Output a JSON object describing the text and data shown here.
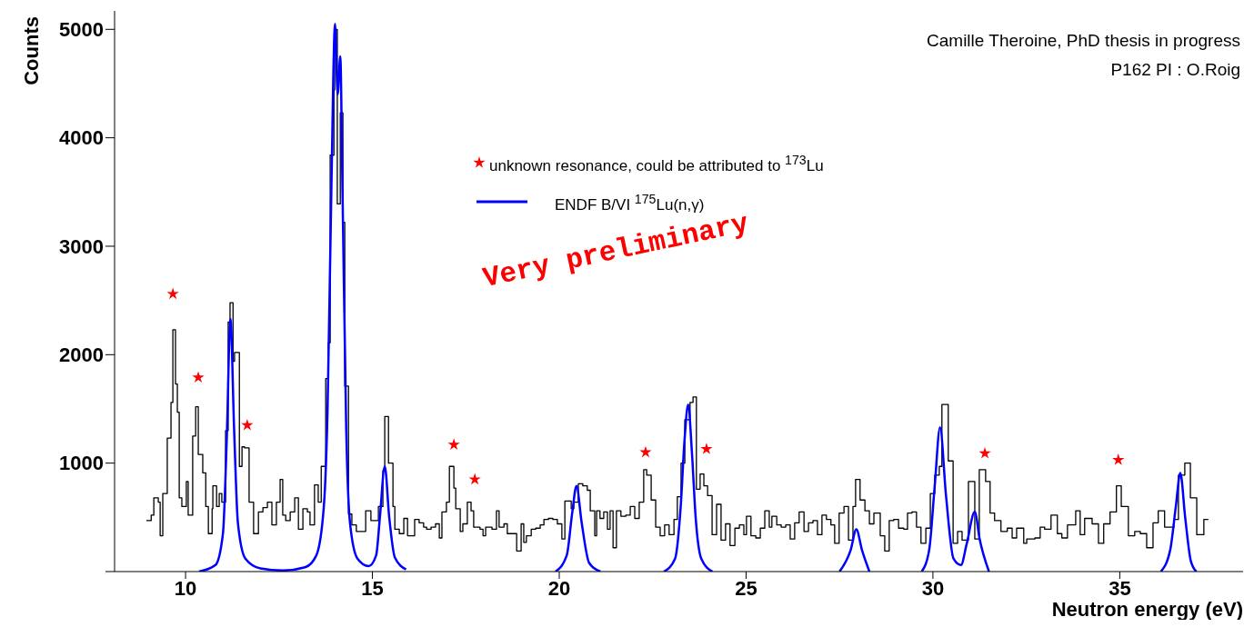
{
  "chart_data": {
    "type": "step",
    "xlabel": "Neutron energy (eV)",
    "ylabel": "Counts",
    "xlim": [
      8.1,
      38.3
    ],
    "xticks": [
      10,
      15,
      20,
      25,
      30,
      35
    ],
    "ylim": [
      0,
      5170
    ],
    "yticks": [
      {
        "value": 0,
        "label": null
      },
      1000,
      2000,
      3000,
      4000,
      5000
    ],
    "grid": false,
    "legend": "top",
    "annotations": [
      "Camille Theroine, PhD thesis in progress",
      "P162 PI : O.Roig",
      "Very preliminary"
    ],
    "series": [
      {
        "color": "#000000",
        "x": [
          8.95,
          9.08,
          9.15,
          9.27,
          9.32,
          9.39,
          9.51,
          9.61,
          9.66,
          9.73,
          9.78,
          9.83,
          9.9,
          10.02,
          10.07,
          10.19,
          10.27,
          10.34,
          10.46,
          10.54,
          10.61,
          10.71,
          10.73,
          10.83,
          10.9,
          10.97,
          11.07,
          11.14,
          11.19,
          11.27,
          11.31,
          11.44,
          11.51,
          11.58,
          11.7,
          11.82,
          11.95,
          12.07,
          12.19,
          12.31,
          12.43,
          12.53,
          12.6,
          12.68,
          12.8,
          12.92,
          13.02,
          13.14,
          13.26,
          13.33,
          13.45,
          13.55,
          13.63,
          13.75,
          13.82,
          13.87,
          13.97,
          13.99,
          14.06,
          14.14,
          14.21,
          14.26,
          14.36,
          14.45,
          14.57,
          14.82,
          14.96,
          15.16,
          15.28,
          15.33,
          15.43,
          15.55,
          15.6,
          15.72,
          15.84,
          15.94,
          16.13,
          16.25,
          16.37,
          16.45,
          16.57,
          16.69,
          16.79,
          16.86,
          16.98,
          17.06,
          17.18,
          17.23,
          17.35,
          17.42,
          17.54,
          17.64,
          17.71,
          17.88,
          17.96,
          18.03,
          18.2,
          18.32,
          18.39,
          18.52,
          18.61,
          18.86,
          18.98,
          19.05,
          19.12,
          19.25,
          19.37,
          19.49,
          19.59,
          19.71,
          19.83,
          19.95,
          20.07,
          20.15,
          20.32,
          20.39,
          20.51,
          20.63,
          20.75,
          20.83,
          20.95,
          21.0,
          21.09,
          21.19,
          21.29,
          21.36,
          21.44,
          21.53,
          21.65,
          21.78,
          21.9,
          22.02,
          22.14,
          22.26,
          22.34,
          22.46,
          22.58,
          22.7,
          22.82,
          22.94,
          23.07,
          23.16,
          23.26,
          23.36,
          23.5,
          23.58,
          23.67,
          23.77,
          23.87,
          23.97,
          24.09,
          24.21,
          24.33,
          24.45,
          24.57,
          24.7,
          24.82,
          24.94,
          25.01,
          25.13,
          25.26,
          25.38,
          25.5,
          25.62,
          25.69,
          25.82,
          25.94,
          26.06,
          26.18,
          26.3,
          26.42,
          26.55,
          26.67,
          26.79,
          26.91,
          27.03,
          27.15,
          27.27,
          27.37,
          27.49,
          27.62,
          27.74,
          27.86,
          27.93,
          28.05,
          28.18,
          28.3,
          28.42,
          28.59,
          28.71,
          28.83,
          28.95,
          29.08,
          29.22,
          29.32,
          29.44,
          29.56,
          29.68,
          29.81,
          29.93,
          30.05,
          30.17,
          30.24,
          30.41,
          30.54,
          30.66,
          30.78,
          30.9,
          30.95,
          31.12,
          31.24,
          31.41,
          31.53,
          31.65,
          31.82,
          31.99,
          32.12,
          32.24,
          32.43,
          32.51,
          32.73,
          32.87,
          32.99,
          33.16,
          33.33,
          33.45,
          33.6,
          33.82,
          33.94,
          34.06,
          34.26,
          34.43,
          34.57,
          34.74,
          34.91,
          35.04,
          35.23,
          35.4,
          35.55,
          35.72,
          35.89,
          36.03,
          36.2,
          36.45,
          36.57,
          36.74,
          36.89,
          37.06,
          37.25,
          37.37
        ],
        "values": [
          470,
          520,
          680,
          640,
          330,
          720,
          1230,
          1560,
          2230,
          1730,
          1470,
          680,
          600,
          830,
          520,
          1250,
          1520,
          1080,
          910,
          600,
          350,
          580,
          790,
          600,
          720,
          640,
          1300,
          2300,
          2480,
          1940,
          2020,
          970,
          1150,
          1140,
          640,
          350,
          550,
          590,
          640,
          430,
          640,
          850,
          520,
          470,
          550,
          680,
          390,
          580,
          550,
          430,
          800,
          640,
          970,
          1780,
          2110,
          3840,
          4440,
          5000,
          3390,
          4230,
          3220,
          1710,
          530,
          430,
          370,
          560,
          470,
          600,
          930,
          1430,
          1000,
          600,
          390,
          350,
          490,
          330,
          480,
          450,
          410,
          390,
          410,
          440,
          310,
          550,
          640,
          970,
          770,
          580,
          370,
          440,
          640,
          560,
          410,
          390,
          330,
          410,
          390,
          560,
          410,
          440,
          350,
          190,
          440,
          270,
          330,
          390,
          400,
          430,
          480,
          490,
          480,
          440,
          300,
          650,
          580,
          640,
          810,
          790,
          750,
          560,
          330,
          560,
          490,
          550,
          390,
          560,
          220,
          560,
          510,
          520,
          600,
          490,
          640,
          940,
          890,
          660,
          410,
          330,
          430,
          340,
          480,
          690,
          1000,
          1400,
          1560,
          1610,
          760,
          900,
          790,
          700,
          340,
          620,
          290,
          440,
          240,
          400,
          430,
          340,
          510,
          330,
          310,
          400,
          560,
          410,
          510,
          430,
          410,
          430,
          300,
          450,
          550,
          370,
          450,
          470,
          340,
          520,
          480,
          430,
          260,
          540,
          600,
          290,
          600,
          850,
          660,
          560,
          440,
          540,
          330,
          190,
          470,
          480,
          400,
          390,
          540,
          550,
          410,
          260,
          400,
          720,
          890,
          970,
          1540,
          1020,
          260,
          370,
          290,
          290,
          830,
          300,
          940,
          830,
          540,
          470,
          370,
          400,
          310,
          400,
          260,
          300,
          310,
          410,
          390,
          520,
          350,
          310,
          430,
          560,
          340,
          490,
          440,
          260,
          440,
          550,
          790,
          600,
          330,
          370,
          350,
          220,
          450,
          560,
          410,
          480,
          890,
          1000,
          680,
          340,
          480,
          480
        ]
      },
      {
        "type": "scatter",
        "name": "unknown resonance, could be attributed to $^{173}$Lu",
        "color": "#ff0000",
        "marker": "star",
        "x": [
          9.66,
          10.34,
          11.65,
          17.18,
          17.74,
          22.31,
          23.94,
          31.39,
          34.96
        ],
        "values": [
          2560,
          1790,
          1350,
          1170,
          850,
          1100,
          1130,
          1090,
          1030
        ]
      },
      {
        "type": "line",
        "name": "ENDF B/VI $^{175}$Lu(n,γ)",
        "color": "#0000ff",
        "x": [
          10.36,
          10.8,
          11.0,
          11.1,
          11.2,
          11.3,
          11.4,
          11.6,
          12.0,
          12.6,
          13.2,
          13.5,
          13.7,
          13.8,
          13.9,
          14.0,
          14.07,
          14.14,
          14.2,
          14.3,
          14.4,
          14.6,
          14.9,
          15.1,
          15.2,
          15.33,
          15.45,
          15.6,
          15.9,
          16.0,
          19.9,
          20.2,
          20.35,
          20.46,
          20.6,
          20.8,
          21.1,
          21.5,
          22.8,
          23.1,
          23.25,
          23.35,
          23.45,
          23.55,
          23.65,
          23.8,
          24.1,
          25.0,
          27.5,
          27.8,
          27.95,
          28.1,
          28.3,
          29.0,
          29.7,
          29.9,
          30.05,
          30.19,
          30.35,
          30.55,
          30.75,
          30.9,
          31.12,
          31.25,
          31.5,
          33.0,
          36.1,
          36.35,
          36.5,
          36.62,
          36.75,
          36.9,
          37.05
        ],
        "values": [
          0,
          60,
          350,
          1200,
          2330,
          1300,
          450,
          120,
          30,
          10,
          40,
          150,
          600,
          1500,
          3500,
          5050,
          4400,
          4750,
          3500,
          1300,
          450,
          120,
          50,
          150,
          500,
          970,
          500,
          130,
          20,
          null,
          0,
          150,
          550,
          790,
          450,
          80,
          0,
          null,
          0,
          120,
          600,
          1200,
          1540,
          1100,
          500,
          120,
          0,
          null,
          0,
          200,
          390,
          200,
          0,
          null,
          0,
          200,
          800,
          1330,
          700,
          120,
          60,
          250,
          550,
          300,
          0,
          null,
          0,
          200,
          600,
          910,
          500,
          100,
          0
        ]
      }
    ]
  }
}
